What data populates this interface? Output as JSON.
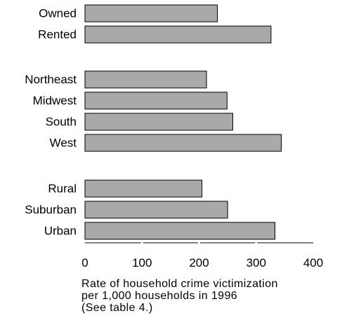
{
  "chart_data": {
    "type": "bar",
    "orientation": "horizontal",
    "groups": [
      {
        "categories": [
          "Owned",
          "Rented"
        ],
        "values": [
          232,
          326
        ]
      },
      {
        "categories": [
          "Northeast",
          "Midwest",
          "South",
          "West"
        ],
        "values": [
          213,
          249,
          259,
          344
        ]
      },
      {
        "categories": [
          "Rural",
          "Suburban",
          "Urban"
        ],
        "values": [
          205,
          250,
          333
        ]
      }
    ],
    "xlim": [
      0,
      400
    ],
    "xticks": [
      "0",
      "100",
      "200",
      "300",
      "400"
    ],
    "caption_lines": [
      "Rate of household crime victimization",
      "per 1,000 households in 1996",
      "(See table 4.)"
    ],
    "colors": {
      "bar_fill": "#a9a9a9",
      "bar_stroke": "#000000"
    },
    "grid": false
  }
}
